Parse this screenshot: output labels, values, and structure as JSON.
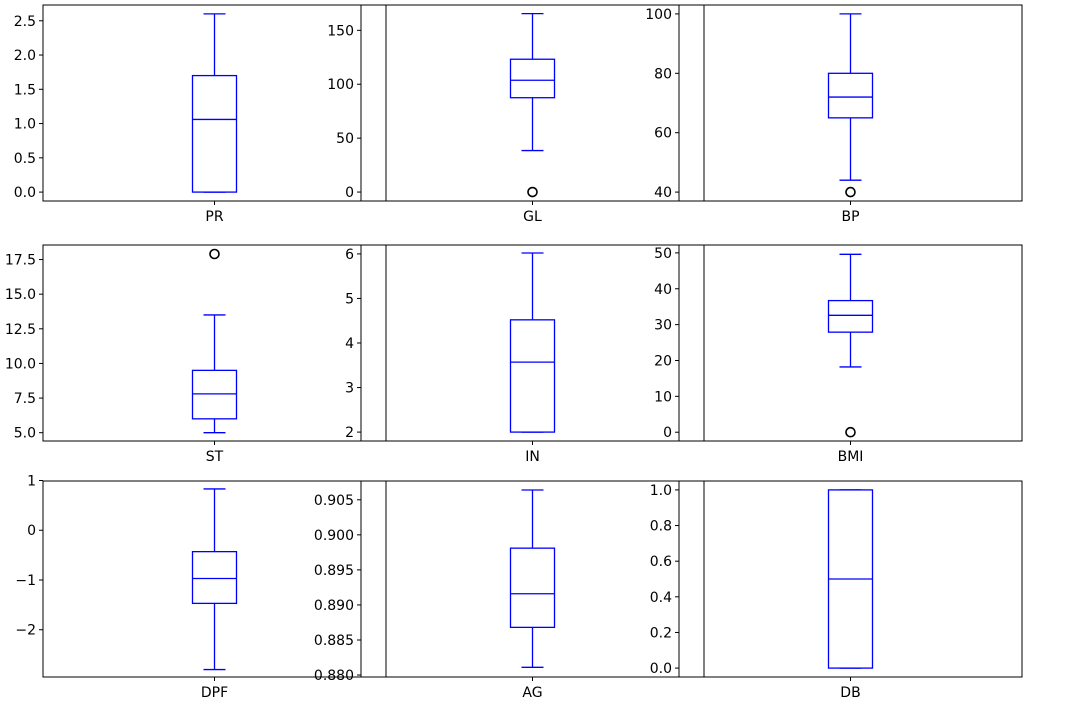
{
  "chart_data": [
    {
      "type": "box",
      "xlabel": "PR",
      "yticks": [
        "0.0",
        "0.5",
        "1.0",
        "1.5",
        "2.0",
        "2.5"
      ],
      "ytick_values": [
        0,
        0.5,
        1.0,
        1.5,
        2.0,
        2.5
      ],
      "ylim": [
        -0.13,
        2.73
      ],
      "box": {
        "whisker_low": 0.0,
        "q1": 0.0,
        "median": 1.06,
        "q3": 1.7,
        "whisker_high": 2.6
      },
      "outliers": [],
      "color": "#0000ff"
    },
    {
      "type": "box",
      "xlabel": "GL",
      "yticks": [
        "0",
        "50",
        "100",
        "150"
      ],
      "ytick_values": [
        0,
        50,
        100,
        150
      ],
      "ylim": [
        -8.3,
        173.5
      ],
      "box": {
        "whisker_low": 38.5,
        "q1": 87.5,
        "median": 103.7,
        "q3": 123.2,
        "whisker_high": 165.5
      },
      "outliers": [
        0
      ],
      "color": "#0000ff"
    },
    {
      "type": "box",
      "xlabel": "BP",
      "yticks": [
        "40",
        "60",
        "80",
        "100"
      ],
      "ytick_values": [
        40,
        60,
        80,
        100
      ],
      "ylim": [
        37.0,
        103.0
      ],
      "box": {
        "whisker_low": 44.0,
        "q1": 65.0,
        "median": 72.0,
        "q3": 80.0,
        "whisker_high": 100.0
      },
      "outliers": [
        40
      ],
      "color": "#0000ff"
    },
    {
      "type": "box",
      "xlabel": "ST",
      "yticks": [
        "5.0",
        "7.5",
        "10.0",
        "12.5",
        "15.0",
        "17.5"
      ],
      "ytick_values": [
        5.0,
        7.5,
        10.0,
        12.5,
        15.0,
        17.5
      ],
      "ylim": [
        4.4,
        18.55
      ],
      "box": {
        "whisker_low": 5.0,
        "q1": 6.0,
        "median": 7.8,
        "q3": 9.5,
        "whisker_high": 13.5
      },
      "outliers": [
        17.9
      ],
      "color": "#0000ff"
    },
    {
      "type": "box",
      "xlabel": "IN",
      "yticks": [
        "2",
        "3",
        "4",
        "5",
        "6"
      ],
      "ytick_values": [
        2,
        3,
        4,
        5,
        6
      ],
      "ylim": [
        1.8,
        6.2
      ],
      "box": {
        "whisker_low": 2.0,
        "q1": 2.0,
        "median": 3.57,
        "q3": 4.52,
        "whisker_high": 6.02
      },
      "outliers": [],
      "color": "#0000ff"
    },
    {
      "type": "box",
      "xlabel": "BMI",
      "yticks": [
        "0",
        "10",
        "20",
        "30",
        "40",
        "50"
      ],
      "ytick_values": [
        0,
        10,
        20,
        30,
        40,
        50
      ],
      "ylim": [
        -2.45,
        52.2
      ],
      "box": {
        "whisker_low": 18.2,
        "q1": 27.9,
        "median": 32.6,
        "q3": 36.7,
        "whisker_high": 49.6
      },
      "outliers": [
        0
      ],
      "color": "#0000ff"
    },
    {
      "type": "box",
      "xlabel": "DPF",
      "yticks": [
        "1",
        "0",
        "−1",
        "−2"
      ],
      "ytick_values": [
        1,
        0,
        -1,
        -2
      ],
      "ylim": [
        -2.95,
        0.99
      ],
      "box": {
        "whisker_low": -2.8,
        "q1": -1.47,
        "median": -0.97,
        "q3": -0.43,
        "whisker_high": 0.83
      },
      "outliers": [],
      "color": "#0000ff"
    },
    {
      "type": "box",
      "xlabel": "AG",
      "yticks": [
        "0.880",
        "0.885",
        "0.890",
        "0.895",
        "0.900",
        "0.905"
      ],
      "ytick_values": [
        0.88,
        0.885,
        0.89,
        0.895,
        0.9,
        0.905
      ],
      "ylim": [
        0.87972,
        0.90768
      ],
      "box": {
        "whisker_low": 0.8811,
        "q1": 0.8868,
        "median": 0.8916,
        "q3": 0.8981,
        "whisker_high": 0.9064
      },
      "outliers": [],
      "color": "#0000ff"
    },
    {
      "type": "box",
      "xlabel": "DB",
      "yticks": [
        "0.0",
        "0.2",
        "0.4",
        "0.6",
        "0.8",
        "1.0"
      ],
      "ytick_values": [
        0,
        0.2,
        0.4,
        0.6,
        0.8,
        1.0
      ],
      "ylim": [
        -0.05,
        1.05
      ],
      "box": {
        "whisker_low": 0.0,
        "q1": 0.0,
        "median": 0.5,
        "q3": 1.0,
        "whisker_high": 1.0
      },
      "outliers": [],
      "color": "#0000ff"
    }
  ]
}
